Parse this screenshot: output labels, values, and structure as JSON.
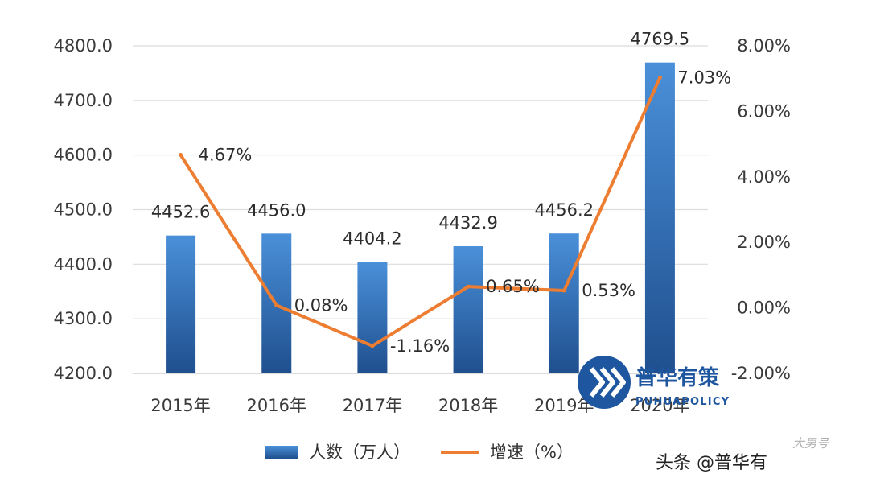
{
  "chart_data": {
    "type": "bar",
    "categories": [
      "2015年",
      "2016年",
      "2017年",
      "2018年",
      "2019年",
      "2020年"
    ],
    "series": [
      {
        "name": "人数（万人）",
        "type": "bar",
        "axis": "left",
        "values": [
          4452.6,
          4456.0,
          4404.2,
          4432.9,
          4456.2,
          4769.5
        ],
        "labels": [
          "4452.6",
          "4456.0",
          "4404.2",
          "4432.9",
          "4456.2",
          "4769.5"
        ],
        "color": "#3a7bc8"
      },
      {
        "name": "增速（%）",
        "type": "line",
        "axis": "right",
        "values": [
          4.67,
          0.08,
          -1.16,
          0.65,
          0.53,
          7.03
        ],
        "labels": [
          "4.67%",
          "0.08%",
          "-1.16%",
          "0.65%",
          "0.53%",
          "7.03%"
        ],
        "color": "#ed7d31"
      }
    ],
    "y_left": {
      "range": [
        4200,
        4800
      ],
      "ticks": [
        "4200.0",
        "4300.0",
        "4400.0",
        "4500.0",
        "4600.0",
        "4700.0",
        "4800.0"
      ]
    },
    "y_right": {
      "range": [
        -2,
        8
      ],
      "ticks": [
        "-2.00%",
        "0.00%",
        "2.00%",
        "4.00%",
        "6.00%",
        "8.00%"
      ]
    },
    "grid": true,
    "legend": "bottom"
  },
  "watermark": {
    "title": "普华有策",
    "subtitle": "PUHUAPOLICY",
    "brand_color": "#1e56a0"
  },
  "caption": "头条 @普华有",
  "stamp": "大男号"
}
